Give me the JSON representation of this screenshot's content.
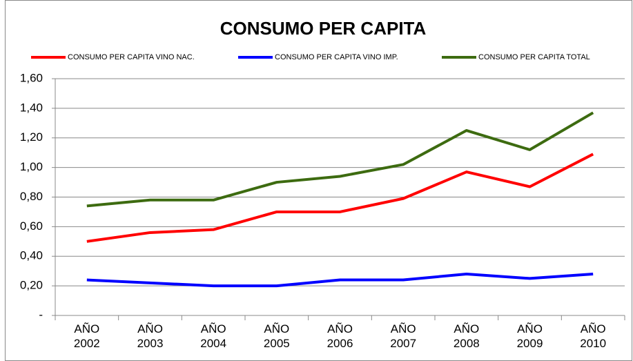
{
  "chart_data": {
    "type": "line",
    "title": "CONSUMO PER CAPITA",
    "categories": [
      "AÑO 2002",
      "AÑO 2003",
      "AÑO 2004",
      "AÑO 2005",
      "AÑO 2006",
      "AÑO 2007",
      "AÑO 2008",
      "AÑO 2009",
      "AÑO 2010"
    ],
    "series": [
      {
        "name": "CONSUMO PER CAPITA VINO NAC.",
        "color": "#ff0000",
        "values": [
          0.5,
          0.56,
          0.58,
          0.7,
          0.7,
          0.79,
          0.97,
          0.87,
          1.09
        ]
      },
      {
        "name": "CONSUMO PER CAPITA VINO IMP.",
        "color": "#0000ff",
        "values": [
          0.24,
          0.22,
          0.2,
          0.2,
          0.24,
          0.24,
          0.28,
          0.25,
          0.28
        ]
      },
      {
        "name": "CONSUMO PER CAPITA TOTAL",
        "color": "#3d6b10",
        "values": [
          0.74,
          0.78,
          0.78,
          0.9,
          0.94,
          1.02,
          1.25,
          1.12,
          1.37
        ]
      }
    ],
    "ylim": [
      0,
      1.6
    ],
    "yticks": [
      {
        "value": 0,
        "label": "-"
      },
      {
        "value": 0.2,
        "label": "0,20"
      },
      {
        "value": 0.4,
        "label": "0,40"
      },
      {
        "value": 0.6,
        "label": "0,60"
      },
      {
        "value": 0.8,
        "label": "0,80"
      },
      {
        "value": 1.0,
        "label": "1,00"
      },
      {
        "value": 1.2,
        "label": "1,20"
      },
      {
        "value": 1.4,
        "label": "1,40"
      },
      {
        "value": 1.6,
        "label": "1,60"
      }
    ],
    "grid": true,
    "legend": "top"
  }
}
